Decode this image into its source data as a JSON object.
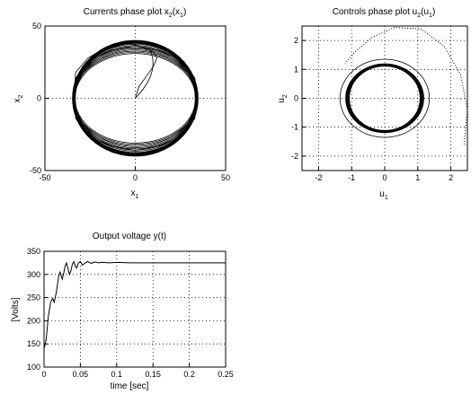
{
  "chart_data": [
    {
      "type": "line",
      "panel": "currents",
      "title": "Currents phase plot x2(x1)",
      "title_parts": {
        "main": "Currents phase plot x",
        "sub1": "2",
        "mid": "(x",
        "sub2": "1",
        "end": ")"
      },
      "xlabel": "x",
      "xlabel_sub": "1",
      "ylabel": "x",
      "ylabel_sub": "2",
      "xlim": [
        -50,
        50
      ],
      "ylim": [
        -50,
        50
      ],
      "xticks": [
        -50,
        0,
        50
      ],
      "yticks": [
        -50,
        0,
        50
      ],
      "grid": true,
      "series": [
        {
          "transient_start": [
            0,
            0
          ],
          "steady_ellipse": {
            "center": [
              0,
              0
            ],
            "rx": 34,
            "ry": 35
          },
          "x": [
            0,
            2,
            6,
            10,
            12,
            10,
            6,
            2,
            0,
            -4,
            -10,
            -18,
            -26,
            -33,
            -34,
            -33,
            -26,
            -14,
            0,
            14,
            26,
            33,
            34,
            33,
            26,
            14,
            0,
            -14,
            -26,
            -33,
            -34
          ],
          "y": [
            0,
            8,
            15,
            22,
            28,
            32,
            34,
            36,
            37,
            38,
            37,
            34,
            28,
            18,
            2,
            -14,
            -26,
            -33,
            -36,
            -33,
            -26,
            -14,
            0,
            14,
            26,
            33,
            36,
            33,
            26,
            14,
            0
          ]
        }
      ]
    },
    {
      "type": "line",
      "panel": "controls",
      "title": "Controls phase plot u2(u1)",
      "title_parts": {
        "main": "Controls phase plot u",
        "sub1": "2",
        "mid": "(u",
        "sub2": "1",
        "end": ")"
      },
      "xlabel": "u",
      "xlabel_sub": "1",
      "ylabel": "u",
      "ylabel_sub": "2",
      "xlim": [
        -2.5,
        2.5
      ],
      "ylim": [
        -2.5,
        2.5
      ],
      "xticks": [
        -2,
        -1,
        0,
        1,
        2
      ],
      "yticks": [
        -2,
        -1,
        0,
        1,
        2
      ],
      "grid": true,
      "series": [
        {
          "style": "solid",
          "steady_ellipse": {
            "center": [
              0,
              0
            ],
            "rx": 1.08,
            "ry": 1.12
          }
        },
        {
          "style": "solid",
          "ellipse": {
            "center": [
              0,
              0
            ],
            "rx": 1.35,
            "ry": 1.35
          }
        },
        {
          "style": "dotted",
          "x": [
            2.4,
            2.5,
            2.3,
            1.8,
            1.1,
            0.3,
            -0.4,
            -0.9,
            -1.2
          ],
          "y": [
            -1.6,
            -0.4,
            0.8,
            1.8,
            2.4,
            2.45,
            2.1,
            1.6,
            1.2
          ]
        }
      ]
    },
    {
      "type": "line",
      "panel": "voltage",
      "title": "Output voltage y(t)",
      "xlabel": "time [sec]",
      "ylabel": "[Volts]",
      "xlim": [
        0,
        0.25
      ],
      "ylim": [
        100,
        350
      ],
      "xticks": [
        "0",
        "0.05",
        "0.1",
        "0.15",
        "0.2",
        "0.25"
      ],
      "yticks": [
        "100",
        "150",
        "200",
        "250",
        "300",
        "350"
      ],
      "grid": true,
      "series": [
        {
          "x": [
            0,
            0.001,
            0.003,
            0.006,
            0.009,
            0.012,
            0.014,
            0.017,
            0.02,
            0.022,
            0.025,
            0.027,
            0.029,
            0.031,
            0.033,
            0.035,
            0.037,
            0.039,
            0.041,
            0.043,
            0.045,
            0.047,
            0.05,
            0.053,
            0.056,
            0.06,
            0.065,
            0.07,
            0.075,
            0.08,
            0.09,
            0.1,
            0.12,
            0.15,
            0.2,
            0.25
          ],
          "y": [
            140,
            145,
            160,
            210,
            240,
            248,
            240,
            262,
            295,
            305,
            290,
            302,
            318,
            325,
            312,
            300,
            308,
            322,
            328,
            318,
            314,
            324,
            328,
            320,
            324,
            328,
            324,
            327,
            325,
            326,
            325,
            326,
            325,
            325,
            325,
            325
          ]
        }
      ]
    }
  ]
}
